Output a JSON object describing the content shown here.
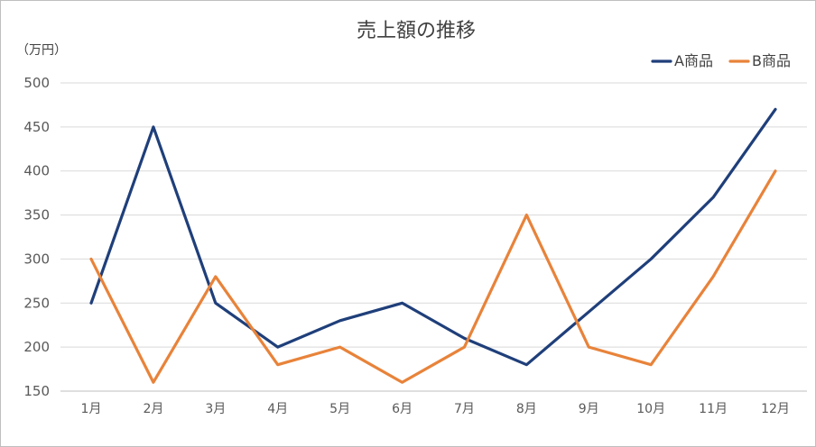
{
  "chart_data": {
    "type": "line",
    "title": "売上額の推移",
    "ylabel": "（万円）",
    "xlabel": "",
    "categories": [
      "1月",
      "2月",
      "3月",
      "4月",
      "5月",
      "6月",
      "7月",
      "8月",
      "9月",
      "10月",
      "11月",
      "12月"
    ],
    "ylim": [
      150,
      500
    ],
    "yticks": [
      150,
      200,
      250,
      300,
      350,
      400,
      450,
      500
    ],
    "grid": true,
    "legend": "top-right",
    "series": [
      {
        "name": "A商品",
        "color": "#1f3f7a",
        "values": [
          250,
          450,
          250,
          200,
          230,
          250,
          210,
          180,
          240,
          300,
          370,
          470
        ]
      },
      {
        "name": "B商品",
        "color": "#e8833a",
        "values": [
          300,
          160,
          280,
          180,
          200,
          160,
          200,
          350,
          200,
          180,
          280,
          400
        ]
      }
    ]
  }
}
